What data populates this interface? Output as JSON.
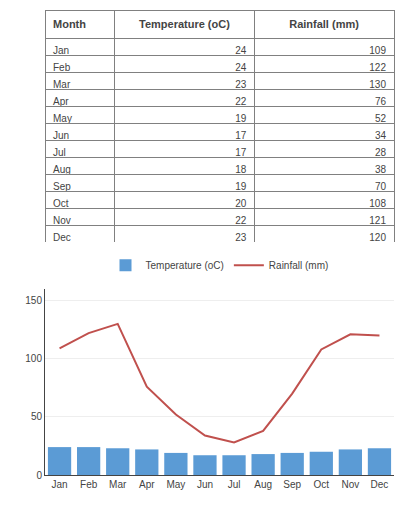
{
  "chart_data": [
    {
      "type": "table",
      "columns": [
        "Month",
        "Temperature (oC)",
        "Rainfall (mm)"
      ],
      "categories": [
        "Jan",
        "Feb",
        "Mar",
        "Apr",
        "May",
        "Jun",
        "Jul",
        "Aug",
        "Sep",
        "Oct",
        "Nov",
        "Dec"
      ],
      "series": [
        {
          "values": [
            24,
            24,
            23,
            22,
            19,
            17,
            17,
            18,
            19,
            20,
            22,
            23
          ]
        },
        {
          "values": [
            109,
            122,
            130,
            76,
            52,
            34,
            28,
            38,
            70,
            108,
            121,
            120
          ]
        }
      ]
    },
    {
      "type": "bar",
      "categories": [
        "Jan",
        "Feb",
        "Mar",
        "Apr",
        "May",
        "Jun",
        "Jul",
        "Aug",
        "Sep",
        "Oct",
        "Nov",
        "Dec"
      ],
      "series": [
        {
          "name": "Temperature (oC)",
          "type": "bar",
          "color": "#5B9BD5",
          "values": [
            24,
            24,
            23,
            22,
            19,
            17,
            17,
            18,
            19,
            20,
            22,
            23
          ]
        },
        {
          "name": "Rainfall (mm)",
          "type": "line",
          "color": "#C0504D",
          "values": [
            109,
            122,
            130,
            76,
            52,
            34,
            28,
            38,
            70,
            108,
            121,
            120
          ]
        }
      ],
      "ylim": [
        0,
        160
      ],
      "yticks": [
        0,
        50,
        100,
        150
      ],
      "grid": true,
      "legend": "top"
    }
  ]
}
